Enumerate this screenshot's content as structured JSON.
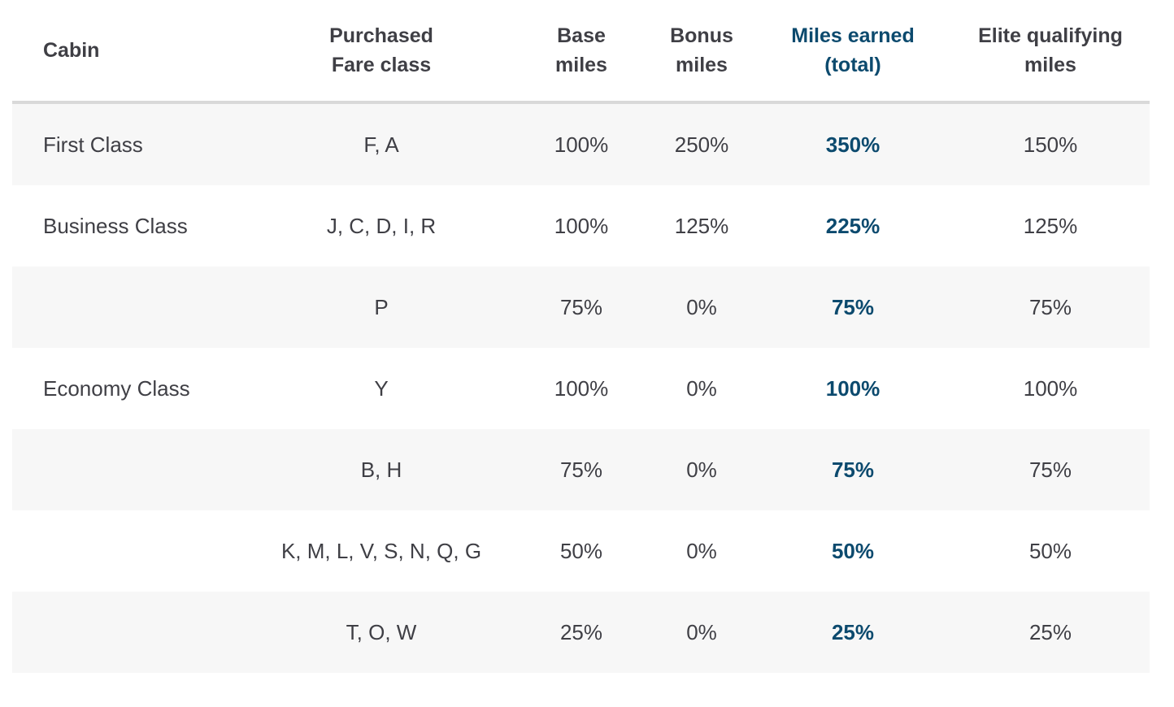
{
  "colors": {
    "accent_navy": "#0c4a6e",
    "body_text": "#3f3f45",
    "alt_row_bg": "#f7f7f7",
    "divider": "#d9d9d9"
  },
  "table": {
    "columns": [
      {
        "key": "cabin",
        "label": "Cabin"
      },
      {
        "key": "fare_class",
        "label": "Purchased\nFare class"
      },
      {
        "key": "base",
        "label": "Base\nmiles"
      },
      {
        "key": "bonus",
        "label": "Bonus\nmiles"
      },
      {
        "key": "earned",
        "label": "Miles earned\n(total)"
      },
      {
        "key": "elite",
        "label": "Elite qualifying\nmiles"
      }
    ],
    "rows": [
      {
        "cabin": "First Class",
        "fare_class": "F, A",
        "base": "100%",
        "bonus": "250%",
        "earned": "350%",
        "elite": "150%"
      },
      {
        "cabin": "Business Class",
        "fare_class": "J, C, D, I, R",
        "base": "100%",
        "bonus": "125%",
        "earned": "225%",
        "elite": "125%"
      },
      {
        "cabin": "",
        "fare_class": "P",
        "base": "75%",
        "bonus": "0%",
        "earned": "75%",
        "elite": "75%"
      },
      {
        "cabin": "Economy Class",
        "fare_class": "Y",
        "base": "100%",
        "bonus": "0%",
        "earned": "100%",
        "elite": "100%"
      },
      {
        "cabin": "",
        "fare_class": "B, H",
        "base": "75%",
        "bonus": "0%",
        "earned": "75%",
        "elite": "75%"
      },
      {
        "cabin": "",
        "fare_class": "K, M, L, V, S, N, Q, G",
        "base": "50%",
        "bonus": "0%",
        "earned": "50%",
        "elite": "50%"
      },
      {
        "cabin": "",
        "fare_class": "T, O, W",
        "base": "25%",
        "bonus": "0%",
        "earned": "25%",
        "elite": "25%"
      }
    ]
  }
}
